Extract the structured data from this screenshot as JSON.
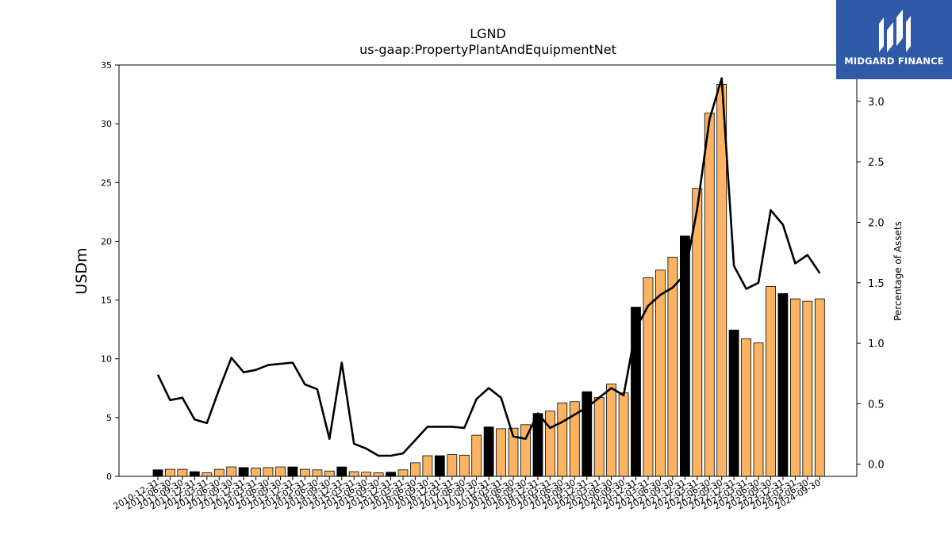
{
  "brand": {
    "name": "MIDGARD FINANCE",
    "bg_color": "#2f5aa8"
  },
  "chart_data": {
    "type": "bar",
    "title": "LGND",
    "subtitle": "us-gaap:PropertyPlantAndEquipmentNet",
    "ylabel": "USDm",
    "y2label": "Percentage of Assets",
    "ylim": [
      0,
      35
    ],
    "y2lim": [
      -0.1,
      3.3
    ],
    "yticks": [
      0,
      5,
      10,
      15,
      20,
      25,
      30,
      35
    ],
    "y2ticks": [
      "0.0",
      "0.5",
      "1.0",
      "1.5",
      "2.0",
      "2.5",
      "3.0"
    ],
    "bar_colors": {
      "annual": "#000000",
      "quarter": "#fdb462"
    },
    "line_color": "#000000",
    "grid": false,
    "categories": [
      "2010-12-31",
      "2011-06-30",
      "2011-09-30",
      "2011-12-31",
      "2012-03-31",
      "2012-06-30",
      "2012-09-30",
      "2012-12-31",
      "2013-03-31",
      "2013-06-30",
      "2013-09-30",
      "2013-12-31",
      "2014-03-31",
      "2014-06-30",
      "2014-09-30",
      "2014-12-31",
      "2015-03-31",
      "2015-06-30",
      "2015-09-30",
      "2015-12-31",
      "2016-03-31",
      "2016-06-30",
      "2016-09-30",
      "2016-12-31",
      "2017-03-31",
      "2017-06-30",
      "2017-09-30",
      "2017-12-31",
      "2018-03-31",
      "2018-06-30",
      "2018-09-30",
      "2018-12-31",
      "2019-03-31",
      "2019-06-30",
      "2019-09-30",
      "2019-12-31",
      "2020-03-31",
      "2020-06-30",
      "2020-09-30",
      "2020-12-31",
      "2021-03-31",
      "2021-06-30",
      "2021-09-30",
      "2021-12-31",
      "2022-03-31",
      "2022-06-30",
      "2022-09-30",
      "2022-12-31",
      "2023-03-31",
      "2023-06-30",
      "2023-09-30",
      "2023-12-31",
      "2024-03-31",
      "2024-06-30",
      "2024-09-30"
    ],
    "series": [
      {
        "name": "PropertyPlantAndEquipmentNet",
        "axis": "left",
        "values": [
          0.55,
          0.6,
          0.6,
          0.4,
          0.3,
          0.6,
          0.8,
          0.75,
          0.7,
          0.75,
          0.8,
          0.8,
          0.6,
          0.55,
          0.45,
          0.8,
          0.4,
          0.35,
          0.3,
          0.35,
          0.55,
          1.15,
          1.75,
          1.75,
          1.85,
          1.8,
          3.5,
          4.2,
          4.05,
          4.1,
          4.4,
          5.35,
          5.55,
          6.25,
          6.35,
          7.2,
          6.7,
          7.85,
          7.1,
          14.4,
          16.9,
          17.55,
          18.65,
          20.45,
          24.5,
          30.9,
          33.35,
          12.45,
          11.7,
          11.35,
          16.15,
          15.55,
          15.1,
          14.9,
          15.1
        ],
        "is_annual": [
          true,
          false,
          false,
          true,
          false,
          false,
          false,
          true,
          false,
          false,
          false,
          true,
          false,
          false,
          false,
          true,
          false,
          false,
          false,
          true,
          false,
          false,
          false,
          true,
          false,
          false,
          false,
          true,
          false,
          false,
          false,
          true,
          false,
          false,
          false,
          true,
          false,
          false,
          false,
          true,
          false,
          false,
          false,
          true,
          false,
          false,
          false,
          true,
          false,
          false,
          false,
          true,
          false,
          false,
          false
        ]
      },
      {
        "name": "Percentage of Assets",
        "axis": "right",
        "values": [
          0.74,
          0.53,
          0.55,
          0.37,
          0.34,
          0.62,
          0.88,
          0.76,
          0.78,
          0.82,
          0.83,
          0.84,
          0.66,
          0.62,
          0.21,
          0.84,
          0.17,
          0.13,
          0.07,
          0.07,
          0.09,
          0.2,
          0.31,
          0.31,
          0.31,
          0.3,
          0.54,
          0.63,
          0.55,
          0.23,
          0.21,
          0.42,
          0.3,
          0.35,
          0.41,
          0.47,
          0.55,
          0.63,
          0.57,
          1.12,
          1.31,
          1.4,
          1.46,
          1.57,
          2.11,
          2.85,
          3.19,
          1.64,
          1.45,
          1.5,
          2.1,
          1.98,
          1.66,
          1.73,
          1.58
        ]
      }
    ]
  }
}
